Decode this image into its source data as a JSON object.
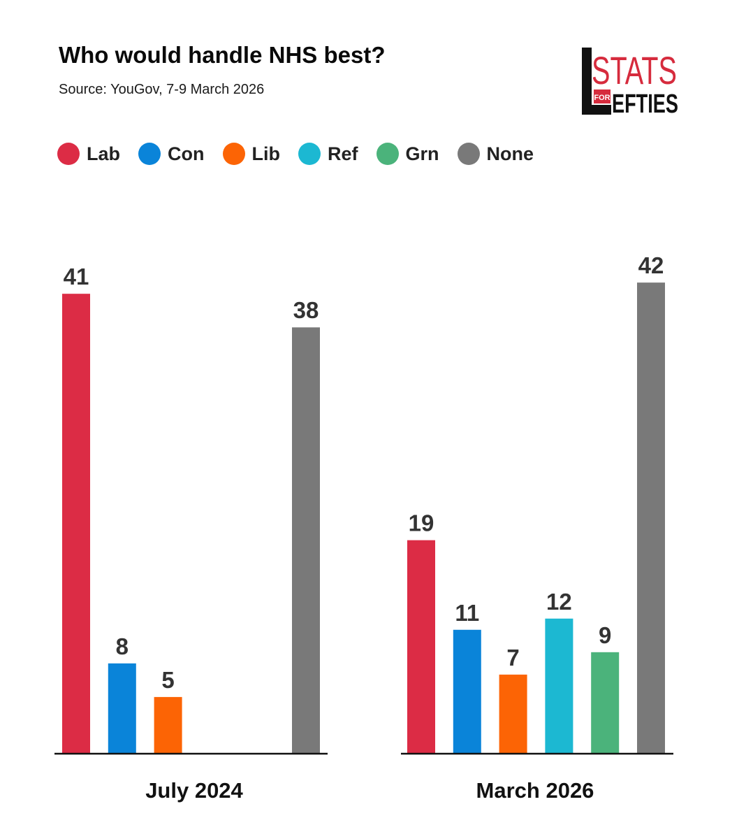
{
  "title": "Who would handle NHS best?",
  "subtitle": "Source: YouGov, 7-9 March 2026",
  "logo": {
    "line1": "STATS",
    "for": "FOR",
    "line2": "EFTIES",
    "letter": "L",
    "color": "#d62b3d"
  },
  "legend": [
    {
      "label": "Lab",
      "color": "#dc2c45"
    },
    {
      "label": "Con",
      "color": "#0a84d9"
    },
    {
      "label": "Lib",
      "color": "#fc6405"
    },
    {
      "label": "Ref",
      "color": "#1cb8d2"
    },
    {
      "label": "Grn",
      "color": "#4bb37b"
    },
    {
      "label": "None",
      "color": "#797979"
    }
  ],
  "chart_data": [
    {
      "type": "bar",
      "group_label": "July 2024",
      "categories": [
        "Lab",
        "Con",
        "Lib",
        "Ref",
        "Grn",
        "None"
      ],
      "values": [
        41,
        8,
        5,
        null,
        null,
        38
      ],
      "ylim": [
        0,
        42
      ]
    },
    {
      "type": "bar",
      "group_label": "March 2026",
      "categories": [
        "Lab",
        "Con",
        "Lib",
        "Ref",
        "Grn",
        "None"
      ],
      "values": [
        19,
        11,
        7,
        12,
        9,
        42
      ],
      "ylim": [
        0,
        42
      ]
    }
  ]
}
